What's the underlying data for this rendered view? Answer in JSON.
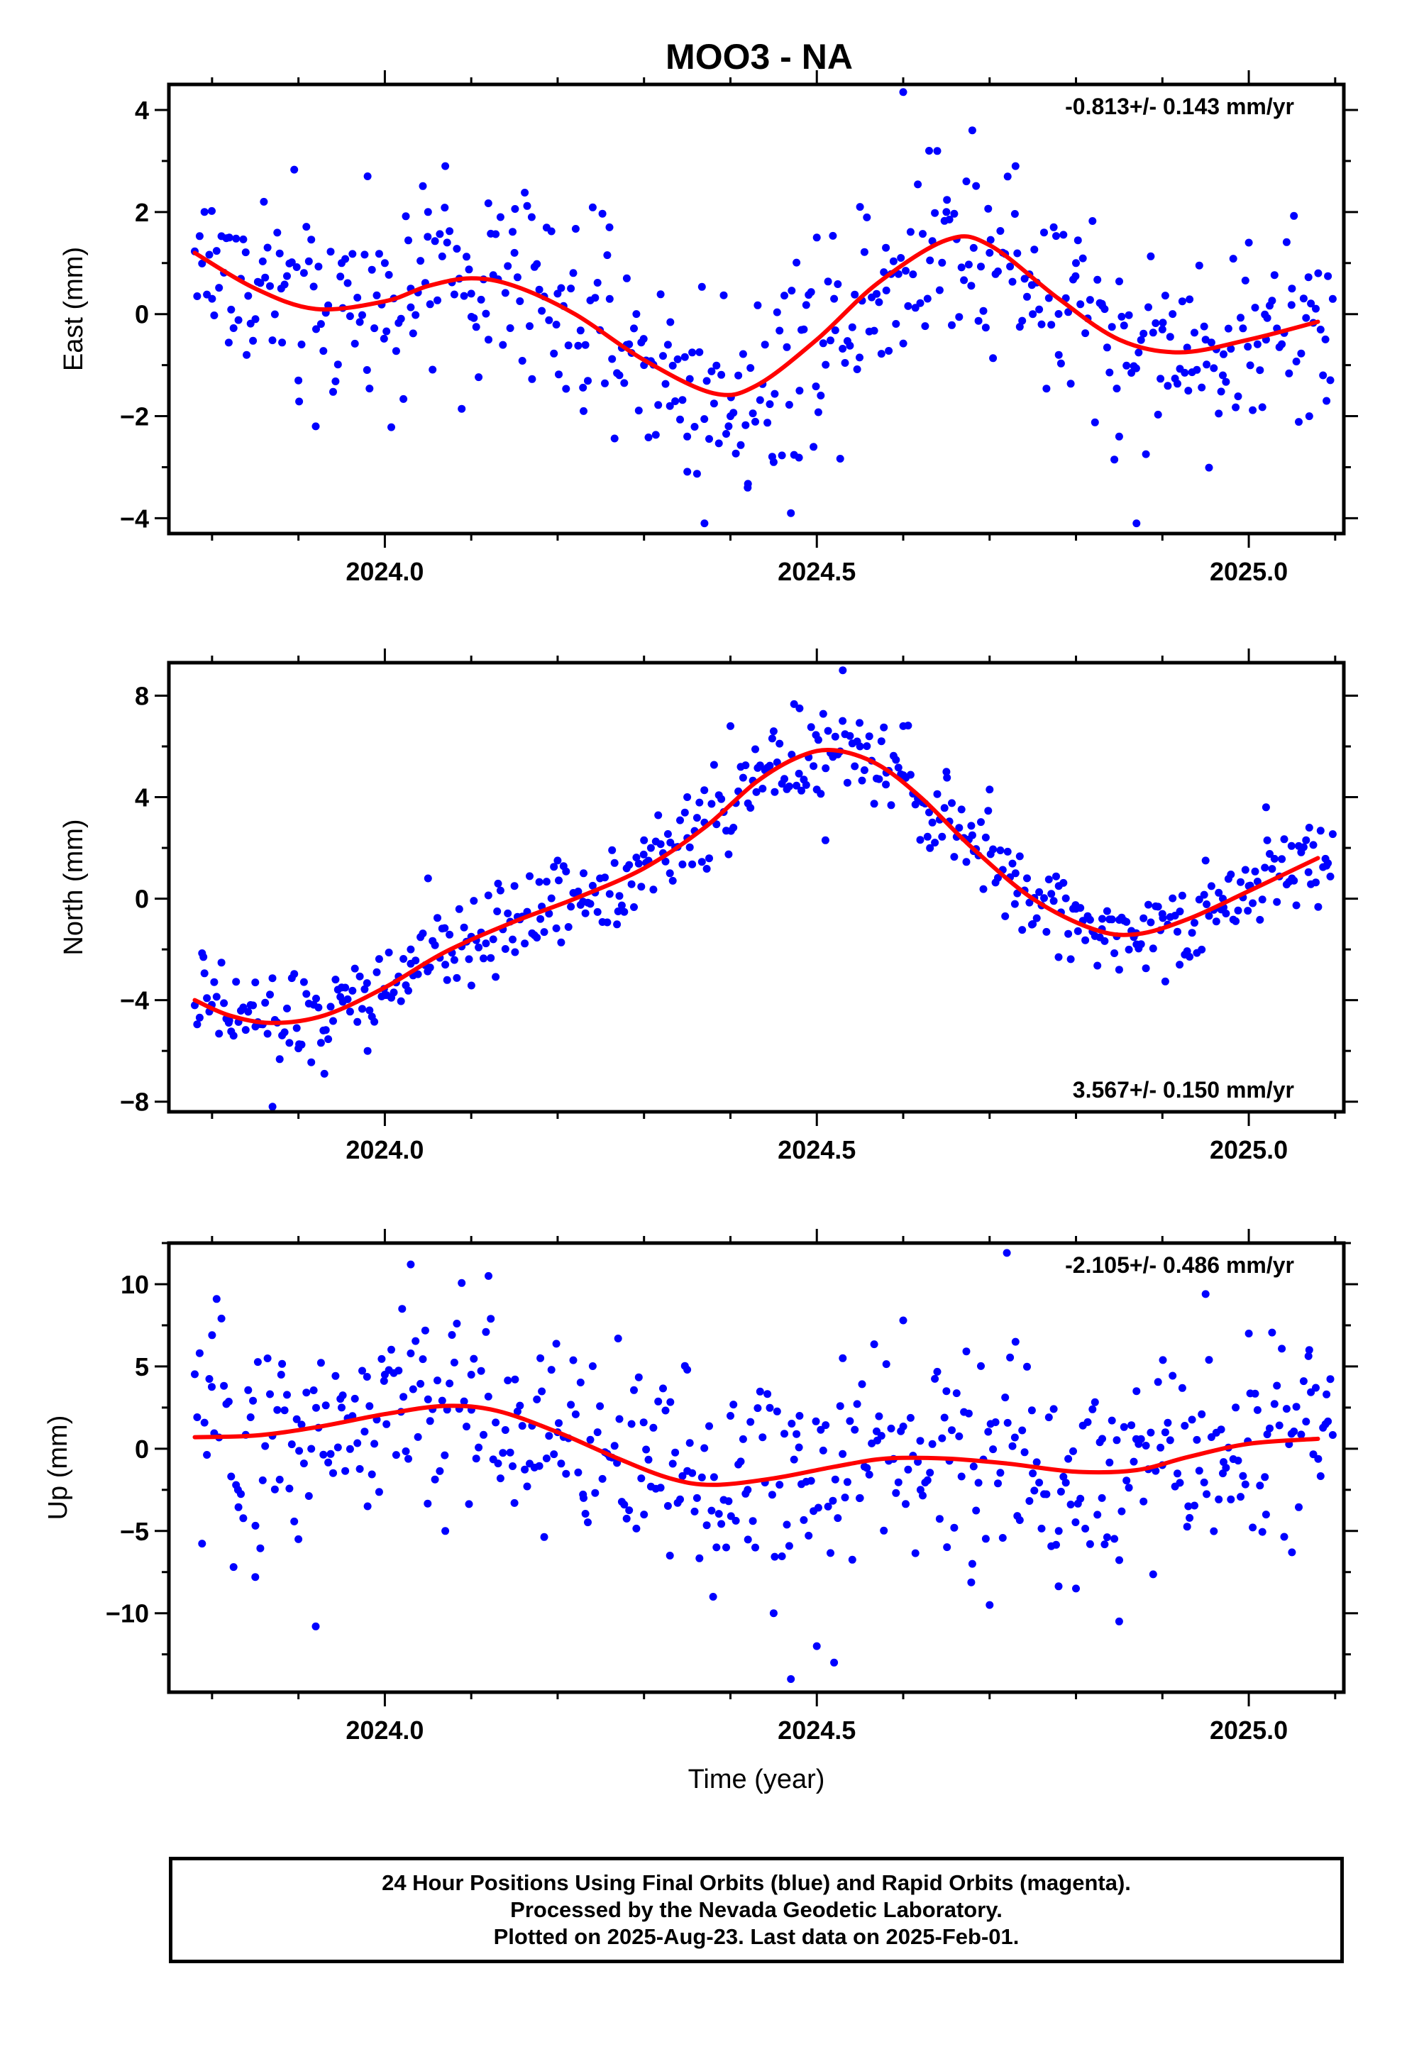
{
  "title": "MOO3 - NA",
  "xlabel": "Time (year)",
  "x_tick_labels": [
    "2024.0",
    "2024.5",
    "2025.0"
  ],
  "footer": {
    "line1": "24 Hour Positions Using Final Orbits (blue) and Rapid Orbits (magenta).",
    "line2": "Processed by the Nevada Geodetic Laboratory.",
    "line3": "Plotted on 2025-Aug-23. Last data on 2025-Feb-01."
  },
  "colors": {
    "points": "#0000ff",
    "fit": "#ff0000",
    "frame": "#000000"
  },
  "chart_data": [
    {
      "type": "scatter",
      "ylabel": "East (mm)",
      "rate": "-0.813+/- 0.143 mm/yr",
      "rate_position": "top-right",
      "xlim": [
        2023.75,
        2025.11
      ],
      "ylim": [
        -4.3,
        4.5
      ],
      "yticks": [
        -4,
        -2,
        0,
        2,
        4
      ],
      "ytick_labels": [
        "−4",
        "−2",
        "0",
        "2",
        "4"
      ],
      "noise": 1.0,
      "fit": [
        [
          2023.78,
          1.2
        ],
        [
          2023.85,
          0.5
        ],
        [
          2023.92,
          0.1
        ],
        [
          2024.0,
          0.25
        ],
        [
          2024.05,
          0.55
        ],
        [
          2024.1,
          0.7
        ],
        [
          2024.15,
          0.55
        ],
        [
          2024.22,
          0.0
        ],
        [
          2024.3,
          -0.9
        ],
        [
          2024.38,
          -1.55
        ],
        [
          2024.43,
          -1.4
        ],
        [
          2024.5,
          -0.5
        ],
        [
          2024.57,
          0.6
        ],
        [
          2024.65,
          1.45
        ],
        [
          2024.7,
          1.35
        ],
        [
          2024.78,
          0.3
        ],
        [
          2024.85,
          -0.5
        ],
        [
          2024.92,
          -0.75
        ],
        [
          2025.0,
          -0.5
        ],
        [
          2025.08,
          -0.15
        ]
      ],
      "points": [
        [
          2023.8,
          0.3
        ],
        [
          2023.82,
          1.5
        ],
        [
          2023.84,
          -0.8
        ],
        [
          2023.86,
          2.2
        ],
        [
          2023.88,
          0.5
        ],
        [
          2023.9,
          -1.3
        ],
        [
          2023.92,
          -2.2
        ],
        [
          2023.95,
          1.0
        ],
        [
          2023.98,
          2.7
        ],
        [
          2024.0,
          1.0
        ],
        [
          2024.03,
          0.5
        ],
        [
          2024.05,
          2.0
        ],
        [
          2024.07,
          2.9
        ],
        [
          2024.1,
          0.4
        ],
        [
          2024.12,
          -0.5
        ],
        [
          2024.15,
          1.2
        ],
        [
          2024.17,
          1.9
        ],
        [
          2024.2,
          0.4
        ],
        [
          2024.23,
          -1.9
        ],
        [
          2024.26,
          1.7
        ],
        [
          2024.28,
          0.7
        ],
        [
          2024.3,
          -1.0
        ],
        [
          2024.33,
          -1.8
        ],
        [
          2024.35,
          -2.4
        ],
        [
          2024.37,
          -4.1
        ],
        [
          2024.4,
          -2.0
        ],
        [
          2024.42,
          -3.4
        ],
        [
          2024.45,
          -2.9
        ],
        [
          2024.47,
          -3.9
        ],
        [
          2024.48,
          -1.5
        ],
        [
          2024.5,
          1.5
        ],
        [
          2024.52,
          0.3
        ],
        [
          2024.55,
          2.1
        ],
        [
          2024.58,
          1.3
        ],
        [
          2024.6,
          4.35
        ],
        [
          2024.63,
          3.2
        ],
        [
          2024.65,
          2.0
        ],
        [
          2024.68,
          3.6
        ],
        [
          2024.7,
          1.2
        ],
        [
          2024.73,
          2.9
        ],
        [
          2024.75,
          0.0
        ],
        [
          2024.78,
          -0.8
        ],
        [
          2024.8,
          1.0
        ],
        [
          2024.83,
          0.2
        ],
        [
          2024.85,
          -2.4
        ],
        [
          2024.87,
          -4.1
        ],
        [
          2024.9,
          -0.3
        ],
        [
          2024.93,
          -1.5
        ],
        [
          2024.95,
          -0.5
        ],
        [
          2024.97,
          -1.2
        ],
        [
          2025.0,
          1.4
        ],
        [
          2025.02,
          -0.5
        ],
        [
          2025.05,
          0.5
        ],
        [
          2025.07,
          -2.0
        ],
        [
          2025.09,
          -1.7
        ]
      ]
    },
    {
      "type": "scatter",
      "ylabel": "North (mm)",
      "rate": "3.567+/- 0.150 mm/yr",
      "rate_position": "bottom-right",
      "xlim": [
        2023.75,
        2025.11
      ],
      "ylim": [
        -8.4,
        9.3
      ],
      "yticks": [
        -8,
        -4,
        0,
        4,
        8
      ],
      "ytick_labels": [
        "−8",
        "−4",
        "0",
        "4",
        "8"
      ],
      "noise": 0.85,
      "fit": [
        [
          2023.78,
          -4.0
        ],
        [
          2023.82,
          -4.6
        ],
        [
          2023.87,
          -4.9
        ],
        [
          2023.93,
          -4.6
        ],
        [
          2024.0,
          -3.5
        ],
        [
          2024.07,
          -2.1
        ],
        [
          2024.15,
          -0.9
        ],
        [
          2024.22,
          0.0
        ],
        [
          2024.3,
          1.2
        ],
        [
          2024.37,
          2.8
        ],
        [
          2024.43,
          4.6
        ],
        [
          2024.48,
          5.6
        ],
        [
          2024.52,
          5.85
        ],
        [
          2024.57,
          5.3
        ],
        [
          2024.62,
          4.0
        ],
        [
          2024.68,
          2.0
        ],
        [
          2024.75,
          0.0
        ],
        [
          2024.82,
          -1.2
        ],
        [
          2024.87,
          -1.4
        ],
        [
          2024.93,
          -0.8
        ],
        [
          2025.0,
          0.3
        ],
        [
          2025.08,
          1.6
        ]
      ],
      "points": [
        [
          2023.79,
          -2.3
        ],
        [
          2023.82,
          -4.8
        ],
        [
          2023.85,
          -3.3
        ],
        [
          2023.87,
          -8.2
        ],
        [
          2023.9,
          -5.9
        ],
        [
          2023.93,
          -6.9
        ],
        [
          2023.95,
          -3.5
        ],
        [
          2023.98,
          -6.0
        ],
        [
          2024.0,
          -3.8
        ],
        [
          2024.03,
          -2.0
        ],
        [
          2024.05,
          0.8
        ],
        [
          2024.07,
          -2.6
        ],
        [
          2024.1,
          -1.5
        ],
        [
          2024.13,
          -0.5
        ],
        [
          2024.15,
          0.5
        ],
        [
          2024.18,
          -0.8
        ],
        [
          2024.2,
          1.5
        ],
        [
          2024.23,
          1.0
        ],
        [
          2024.27,
          -0.5
        ],
        [
          2024.3,
          2.3
        ],
        [
          2024.33,
          1.0
        ],
        [
          2024.35,
          4.0
        ],
        [
          2024.37,
          3.0
        ],
        [
          2024.4,
          6.8
        ],
        [
          2024.43,
          4.2
        ],
        [
          2024.45,
          6.6
        ],
        [
          2024.48,
          7.5
        ],
        [
          2024.5,
          4.3
        ],
        [
          2024.51,
          2.3
        ],
        [
          2024.53,
          9.0
        ],
        [
          2024.55,
          6.0
        ],
        [
          2024.58,
          4.5
        ],
        [
          2024.6,
          6.8
        ],
        [
          2024.63,
          3.4
        ],
        [
          2024.65,
          5.0
        ],
        [
          2024.68,
          2.5
        ],
        [
          2024.7,
          4.3
        ],
        [
          2024.73,
          1.0
        ],
        [
          2024.75,
          -1.0
        ],
        [
          2024.78,
          0.5
        ],
        [
          2024.8,
          -0.4
        ],
        [
          2024.83,
          -1.2
        ],
        [
          2024.85,
          -2.8
        ],
        [
          2024.87,
          -1.8
        ],
        [
          2024.9,
          -0.6
        ],
        [
          2024.92,
          -2.6
        ],
        [
          2024.95,
          1.5
        ],
        [
          2024.97,
          0.0
        ],
        [
          2025.0,
          0.5
        ],
        [
          2025.02,
          3.6
        ],
        [
          2025.05,
          0.8
        ],
        [
          2025.07,
          2.8
        ],
        [
          2025.09,
          1.3
        ]
      ]
    },
    {
      "type": "scatter",
      "ylabel": "Up (mm)",
      "rate": "-2.105+/- 0.486 mm/yr",
      "rate_position": "top-right",
      "xlim": [
        2023.75,
        2025.11
      ],
      "ylim": [
        -14.8,
        12.5
      ],
      "yticks": [
        -10,
        -5,
        0,
        5,
        10
      ],
      "ytick_labels": [
        "−10",
        "−5",
        "0",
        "5",
        "10"
      ],
      "noise": 3.2,
      "fit": [
        [
          2023.78,
          0.7
        ],
        [
          2023.85,
          0.8
        ],
        [
          2023.92,
          1.3
        ],
        [
          2024.0,
          2.1
        ],
        [
          2024.07,
          2.6
        ],
        [
          2024.13,
          2.3
        ],
        [
          2024.2,
          1.0
        ],
        [
          2024.27,
          -0.6
        ],
        [
          2024.33,
          -1.8
        ],
        [
          2024.38,
          -2.2
        ],
        [
          2024.45,
          -1.8
        ],
        [
          2024.52,
          -1.1
        ],
        [
          2024.58,
          -0.6
        ],
        [
          2024.65,
          -0.6
        ],
        [
          2024.72,
          -0.9
        ],
        [
          2024.8,
          -1.4
        ],
        [
          2024.87,
          -1.3
        ],
        [
          2024.93,
          -0.5
        ],
        [
          2025.0,
          0.3
        ],
        [
          2025.08,
          0.6
        ]
      ],
      "points": [
        [
          2023.8,
          6.9
        ],
        [
          2023.83,
          -2.5
        ],
        [
          2023.85,
          -7.8
        ],
        [
          2023.88,
          4.5
        ],
        [
          2023.9,
          -5.5
        ],
        [
          2023.92,
          -10.8
        ],
        [
          2023.95,
          2.5
        ],
        [
          2023.98,
          -3.5
        ],
        [
          2024.0,
          4.5
        ],
        [
          2024.02,
          8.5
        ],
        [
          2024.03,
          11.2
        ],
        [
          2024.05,
          3.0
        ],
        [
          2024.07,
          -5.0
        ],
        [
          2024.1,
          4.5
        ],
        [
          2024.12,
          10.5
        ],
        [
          2024.15,
          -3.3
        ],
        [
          2024.18,
          5.5
        ],
        [
          2024.2,
          1.0
        ],
        [
          2024.23,
          -3.0
        ],
        [
          2024.27,
          6.7
        ],
        [
          2024.3,
          -4.0
        ],
        [
          2024.33,
          -6.5
        ],
        [
          2024.35,
          4.8
        ],
        [
          2024.38,
          -9.0
        ],
        [
          2024.4,
          2.0
        ],
        [
          2024.42,
          -2.5
        ],
        [
          2024.45,
          -10.0
        ],
        [
          2024.47,
          -14.0
        ],
        [
          2024.48,
          2.0
        ],
        [
          2024.5,
          -12.0
        ],
        [
          2024.52,
          -13.0
        ],
        [
          2024.53,
          5.5
        ],
        [
          2024.55,
          -3.0
        ],
        [
          2024.57,
          0.5
        ],
        [
          2024.6,
          7.8
        ],
        [
          2024.62,
          -2.5
        ],
        [
          2024.65,
          3.5
        ],
        [
          2024.68,
          -7.0
        ],
        [
          2024.7,
          -9.5
        ],
        [
          2024.72,
          11.9
        ],
        [
          2024.73,
          6.5
        ],
        [
          2024.75,
          -1.5
        ],
        [
          2024.78,
          -5.0
        ],
        [
          2024.8,
          -8.5
        ],
        [
          2024.83,
          -3.0
        ],
        [
          2024.85,
          -10.5
        ],
        [
          2024.87,
          3.5
        ],
        [
          2024.9,
          -1.0
        ],
        [
          2024.93,
          -3.5
        ],
        [
          2024.95,
          9.4
        ],
        [
          2024.97,
          -1.5
        ],
        [
          2025.0,
          7.0
        ],
        [
          2025.02,
          -4.0
        ],
        [
          2025.05,
          -6.3
        ],
        [
          2025.07,
          6.0
        ],
        [
          2025.09,
          3.3
        ]
      ]
    }
  ]
}
